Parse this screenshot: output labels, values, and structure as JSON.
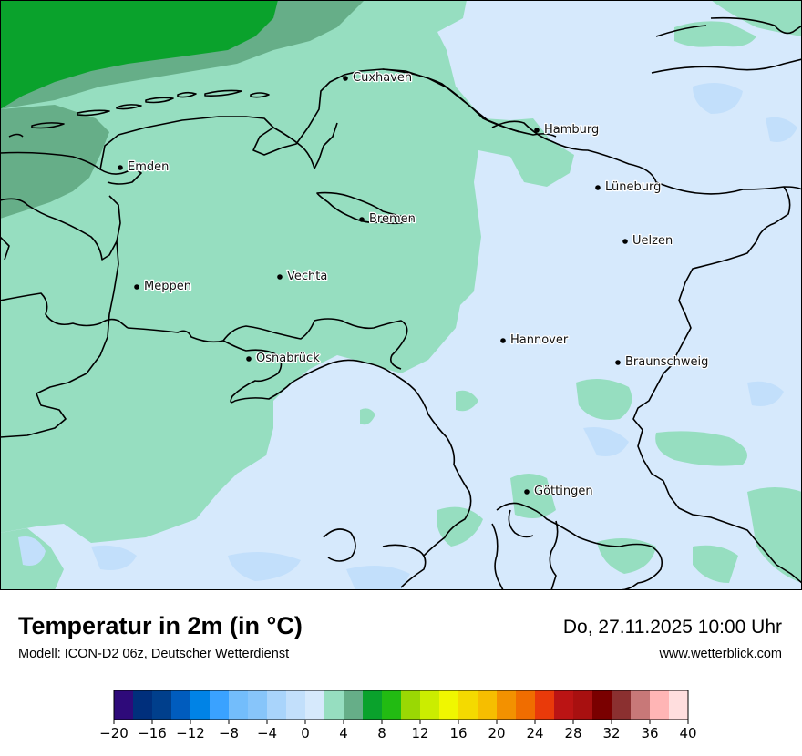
{
  "header": {
    "title": "Temperatur in 2m (in °C)",
    "model": "Modell: ICON-D2 06z, Deutscher Wetterdienst",
    "datetime": "Do, 27.11.2025 10:00 Uhr",
    "website": "www.wetterblick.com"
  },
  "map": {
    "cities": [
      {
        "id": "cuxhaven",
        "name": "Cuxhaven"
      },
      {
        "id": "hamburg",
        "name": "Hamburg"
      },
      {
        "id": "emden",
        "name": "Emden"
      },
      {
        "id": "lueneburg",
        "name": "Lüneburg"
      },
      {
        "id": "bremen",
        "name": "Bremen"
      },
      {
        "id": "uelzen",
        "name": "Uelzen"
      },
      {
        "id": "vechta",
        "name": "Vechta"
      },
      {
        "id": "meppen",
        "name": "Meppen"
      },
      {
        "id": "hannover",
        "name": "Hannover"
      },
      {
        "id": "osnabrueck",
        "name": "Osnabrück"
      },
      {
        "id": "braunschweig",
        "name": "Braunschweig"
      },
      {
        "id": "goettingen",
        "name": "Göttingen"
      }
    ],
    "colors": {
      "temp_2_4": "#96dec0",
      "temp_0_2": "#d6e9fc",
      "temp_minus2_0": "#c2dffb",
      "temp_4_6": "#66ae88",
      "temp_6_8": "#0aa22c",
      "border": "#000000"
    }
  },
  "legend": {
    "ticks": [
      "−20",
      "−16",
      "−12",
      "−8",
      "−4",
      "0",
      "4",
      "8",
      "12",
      "16",
      "20",
      "24",
      "28",
      "32",
      "36",
      "40"
    ],
    "colors": [
      "#2e0a7a",
      "#002f7c",
      "#003f8c",
      "#005cbe",
      "#0083e6",
      "#3aa2ff",
      "#73bdfb",
      "#87c5fa",
      "#a9d4fb",
      "#c2dffb",
      "#d6e9fc",
      "#96dec0",
      "#66ae88",
      "#0aa22c",
      "#22bb12",
      "#9ad804",
      "#cbed00",
      "#f0f700",
      "#f4da00",
      "#f6be00",
      "#f39100",
      "#f06d00",
      "#e93a0a",
      "#bb1414",
      "#a81010",
      "#7a0000",
      "#8b3030",
      "#c87878",
      "#ffb5b5",
      "#ffdede"
    ]
  }
}
